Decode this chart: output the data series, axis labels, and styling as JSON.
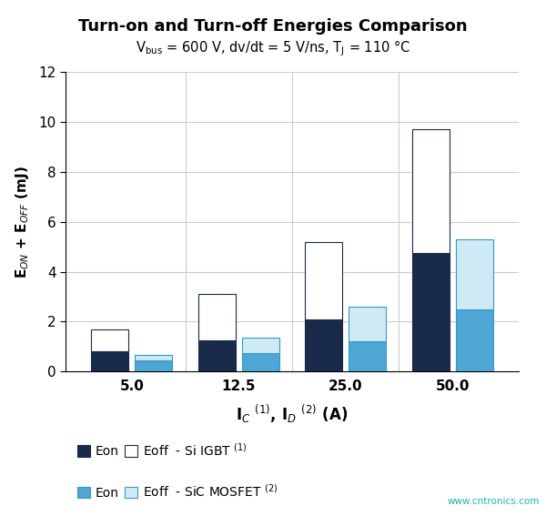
{
  "title": "Turn-on and Turn-off Energies Comparison",
  "xlabel": "I$_C$ $^{(1)}$, I$_D$ $^{(2)}$ (A)",
  "ylabel": "E$_{ON}$ + E$_{OFF}$ (mJ)",
  "x_labels": [
    "5.0",
    "12.5",
    "25.0",
    "50.0"
  ],
  "ylim": [
    0,
    12
  ],
  "yticks": [
    0,
    2,
    4,
    6,
    8,
    10,
    12
  ],
  "igbt_eon": [
    0.8,
    1.25,
    2.1,
    4.75
  ],
  "igbt_eoff": [
    0.9,
    1.85,
    3.1,
    4.95
  ],
  "sic_eon": [
    0.45,
    0.75,
    1.2,
    2.5
  ],
  "sic_eoff": [
    0.2,
    0.6,
    1.4,
    2.8
  ],
  "color_igbt_eon": "#1a2a4a",
  "color_igbt_eoff": "#ffffff",
  "color_sic_eon": "#4da6d4",
  "color_sic_eoff": "#d0eaf5",
  "edge_igbt": "#1a2a4a",
  "edge_sic": "#3399cc",
  "bar_width": 0.35,
  "background_color": "#ffffff",
  "grid_color": "#cccccc",
  "watermark": "www.cntronics.com"
}
